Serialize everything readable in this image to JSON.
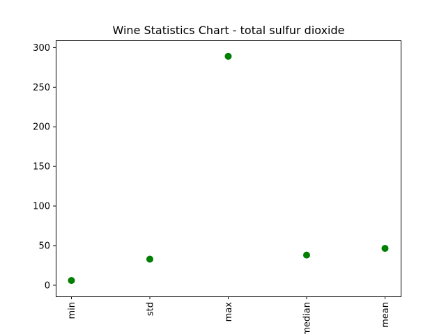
{
  "chart_data": {
    "type": "scatter",
    "title": "Wine Statistics Chart - total sulfur dioxide",
    "xlabel": "",
    "ylabel": "",
    "categories": [
      "min",
      "std",
      "max",
      "median",
      "mean"
    ],
    "values": [
      6.0,
      32.9,
      289.0,
      38.0,
      46.5
    ],
    "ylim": [
      -14.15,
      309.15
    ],
    "yticks": [
      0,
      50,
      100,
      150,
      200,
      250,
      300
    ],
    "grid": false,
    "colors": {
      "marker": "#007f00",
      "axes": "#000000",
      "background": "#ffffff"
    }
  }
}
